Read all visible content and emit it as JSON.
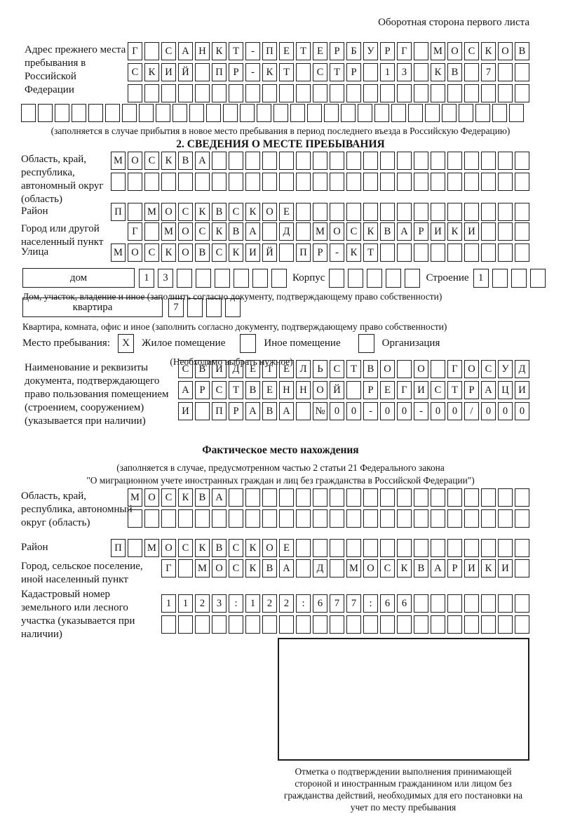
{
  "page": {
    "header_note": "Оборотная сторона первого листа"
  },
  "prev_address": {
    "label": "Адрес прежнего места пребывания в Российской Федерации",
    "row1": [
      "Г",
      "",
      "С",
      "А",
      "Н",
      "К",
      "Т",
      "-",
      "П",
      "Е",
      "Т",
      "Е",
      "Р",
      "Б",
      "У",
      "Р",
      "Г",
      "",
      "М",
      "О",
      "С",
      "К",
      "О",
      "В"
    ],
    "row2": [
      "С",
      "К",
      "И",
      "Й",
      "",
      "П",
      "Р",
      "-",
      "К",
      "Т",
      "",
      "С",
      "Т",
      "Р",
      "",
      "1",
      "3",
      "",
      "К",
      "В",
      "",
      "7",
      "",
      ""
    ],
    "row3": [
      "",
      "",
      "",
      "",
      "",
      "",
      "",
      "",
      "",
      "",
      "",
      "",
      "",
      "",
      "",
      "",
      "",
      "",
      "",
      "",
      "",
      "",
      "",
      ""
    ],
    "row4": [
      "",
      "",
      "",
      "",
      "",
      "",
      "",
      "",
      "",
      "",
      "",
      "",
      "",
      "",
      "",
      "",
      "",
      "",
      "",
      "",
      "",
      "",
      "",
      "",
      "",
      "",
      "",
      "",
      "",
      ""
    ],
    "note": "(заполняется в случае прибытия в новое место пребывания в период последнего въезда в Российскую Федерацию)"
  },
  "section2": {
    "title": "2. СВЕДЕНИЯ О МЕСТЕ ПРЕБЫВАНИЯ",
    "oblast": {
      "label": "Область, край, республика, автономный округ (область)",
      "row1": [
        "М",
        "О",
        "С",
        "К",
        "В",
        "А",
        "",
        "",
        "",
        "",
        "",
        "",
        "",
        "",
        "",
        "",
        "",
        "",
        "",
        "",
        "",
        "",
        "",
        "",
        ""
      ],
      "row2": [
        "",
        "",
        "",
        "",
        "",
        "",
        "",
        "",
        "",
        "",
        "",
        "",
        "",
        "",
        "",
        "",
        "",
        "",
        "",
        "",
        "",
        "",
        "",
        "",
        ""
      ]
    },
    "rayon": {
      "label": "Район",
      "row": [
        "П",
        "",
        "М",
        "О",
        "С",
        "К",
        "В",
        "С",
        "К",
        "О",
        "Е",
        "",
        "",
        "",
        "",
        "",
        "",
        "",
        "",
        "",
        "",
        "",
        "",
        "",
        ""
      ]
    },
    "gorod": {
      "label": "Город или другой населенный пункт",
      "row": [
        "Г",
        "",
        "М",
        "О",
        "С",
        "К",
        "В",
        "А",
        "",
        "Д",
        "",
        "М",
        "О",
        "С",
        "К",
        "В",
        "А",
        "Р",
        "И",
        "К",
        "И",
        "",
        "",
        ""
      ]
    },
    "ulitsa": {
      "label": "Улица",
      "row": [
        "М",
        "О",
        "С",
        "К",
        "О",
        "В",
        "С",
        "К",
        "И",
        "Й",
        "",
        "П",
        "Р",
        "-",
        "К",
        "Т",
        "",
        "",
        "",
        "",
        "",
        "",
        "",
        "",
        ""
      ]
    },
    "dom": {
      "box_label": "дом",
      "cells": [
        "1",
        "3",
        "",
        "",
        "",
        "",
        "",
        ""
      ],
      "korpus_label": "Корпус",
      "korpus_cells": [
        "",
        "",
        "",
        "",
        ""
      ],
      "stroenie_label": "Строение",
      "stroenie_cells": [
        "1",
        "",
        "",
        ""
      ],
      "note": "Дом, участок, владение и иное (заполнить согласно документу, подтверждающему право собственности)"
    },
    "kvartira": {
      "box_label": "квартира",
      "cells": [
        "7",
        "",
        "",
        ""
      ],
      "note": "Квартира, комната, офис и иное (заполнить согласно документу, подтверждающему право собственности)"
    },
    "place_type": {
      "label": "Место пребывания:",
      "opt1_mark": "X",
      "opt1_label": "Жилое помещение",
      "opt2_mark": "",
      "opt2_label": "Иное помещение",
      "opt3_mark": "",
      "opt3_label": "Организация",
      "note": "(Необходимо выбрать нужное)"
    },
    "document": {
      "label": "Наименование и реквизиты документа, подтверждающего право пользования помещением (строением, сооружением) (указывается при наличии)",
      "row1": [
        "С",
        "В",
        "И",
        "Д",
        "Е",
        "Т",
        "Е",
        "Л",
        "Ь",
        "С",
        "Т",
        "В",
        "О",
        "",
        "О",
        "",
        "Г",
        "О",
        "С",
        "У",
        "Д"
      ],
      "row2": [
        "А",
        "Р",
        "С",
        "Т",
        "В",
        "Е",
        "Н",
        "Н",
        "О",
        "Й",
        "",
        "Р",
        "Е",
        "Г",
        "И",
        "С",
        "Т",
        "Р",
        "А",
        "Ц",
        "И"
      ],
      "row3": [
        "И",
        "",
        "П",
        "Р",
        "А",
        "В",
        "А",
        "",
        "№",
        "0",
        "0",
        "-",
        "0",
        "0",
        "-",
        "0",
        "0",
        "/",
        "0",
        "0",
        "0"
      ]
    }
  },
  "actual_location": {
    "title": "Фактическое место нахождения",
    "note1": "(заполняется в случае, предусмотренном частью 2 статьи 21 Федерального закона",
    "note2": "\"О миграционном учете иностранных граждан и лиц без гражданства в Российской Федерации\")",
    "oblast": {
      "label": "Область, край, республика, автономный округ (область)",
      "row1": [
        "М",
        "О",
        "С",
        "К",
        "В",
        "А",
        "",
        "",
        "",
        "",
        "",
        "",
        "",
        "",
        "",
        "",
        "",
        "",
        "",
        "",
        "",
        "",
        "",
        ""
      ],
      "row2": [
        "",
        "",
        "",
        "",
        "",
        "",
        "",
        "",
        "",
        "",
        "",
        "",
        "",
        "",
        "",
        "",
        "",
        "",
        "",
        "",
        "",
        "",
        "",
        ""
      ]
    },
    "rayon": {
      "label": "Район",
      "row": [
        "П",
        "",
        "М",
        "О",
        "С",
        "К",
        "В",
        "С",
        "К",
        "О",
        "Е",
        "",
        "",
        "",
        "",
        "",
        "",
        "",
        "",
        "",
        "",
        "",
        "",
        "",
        ""
      ]
    },
    "gorod": {
      "label": "Город, сельское поселение, иной населенный пункт",
      "row": [
        "Г",
        "",
        "М",
        "О",
        "С",
        "К",
        "В",
        "А",
        "",
        "Д",
        "",
        "М",
        "О",
        "С",
        "К",
        "В",
        "А",
        "Р",
        "И",
        "К",
        "И",
        ""
      ]
    },
    "kadastr": {
      "label": "Кадастровый номер земельного или лесного участка (указывается при наличии)",
      "row1": [
        "1",
        "1",
        "2",
        "3",
        ":",
        "1",
        "2",
        "2",
        ":",
        "6",
        "7",
        "7",
        ":",
        "6",
        "6",
        "",
        "",
        "",
        "",
        "",
        "",
        ""
      ],
      "row2": [
        "",
        "",
        "",
        "",
        "",
        "",
        "",
        "",
        "",
        "",
        "",
        "",
        "",
        "",
        "",
        "",
        "",
        "",
        "",
        "",
        "",
        ""
      ]
    },
    "stamp_note": "Отметка о подтверждении выполнения принимающей стороной и иностранным гражданином или лицом без гражданства действий, необходимых для его постановки на учет по месту пребывания"
  }
}
